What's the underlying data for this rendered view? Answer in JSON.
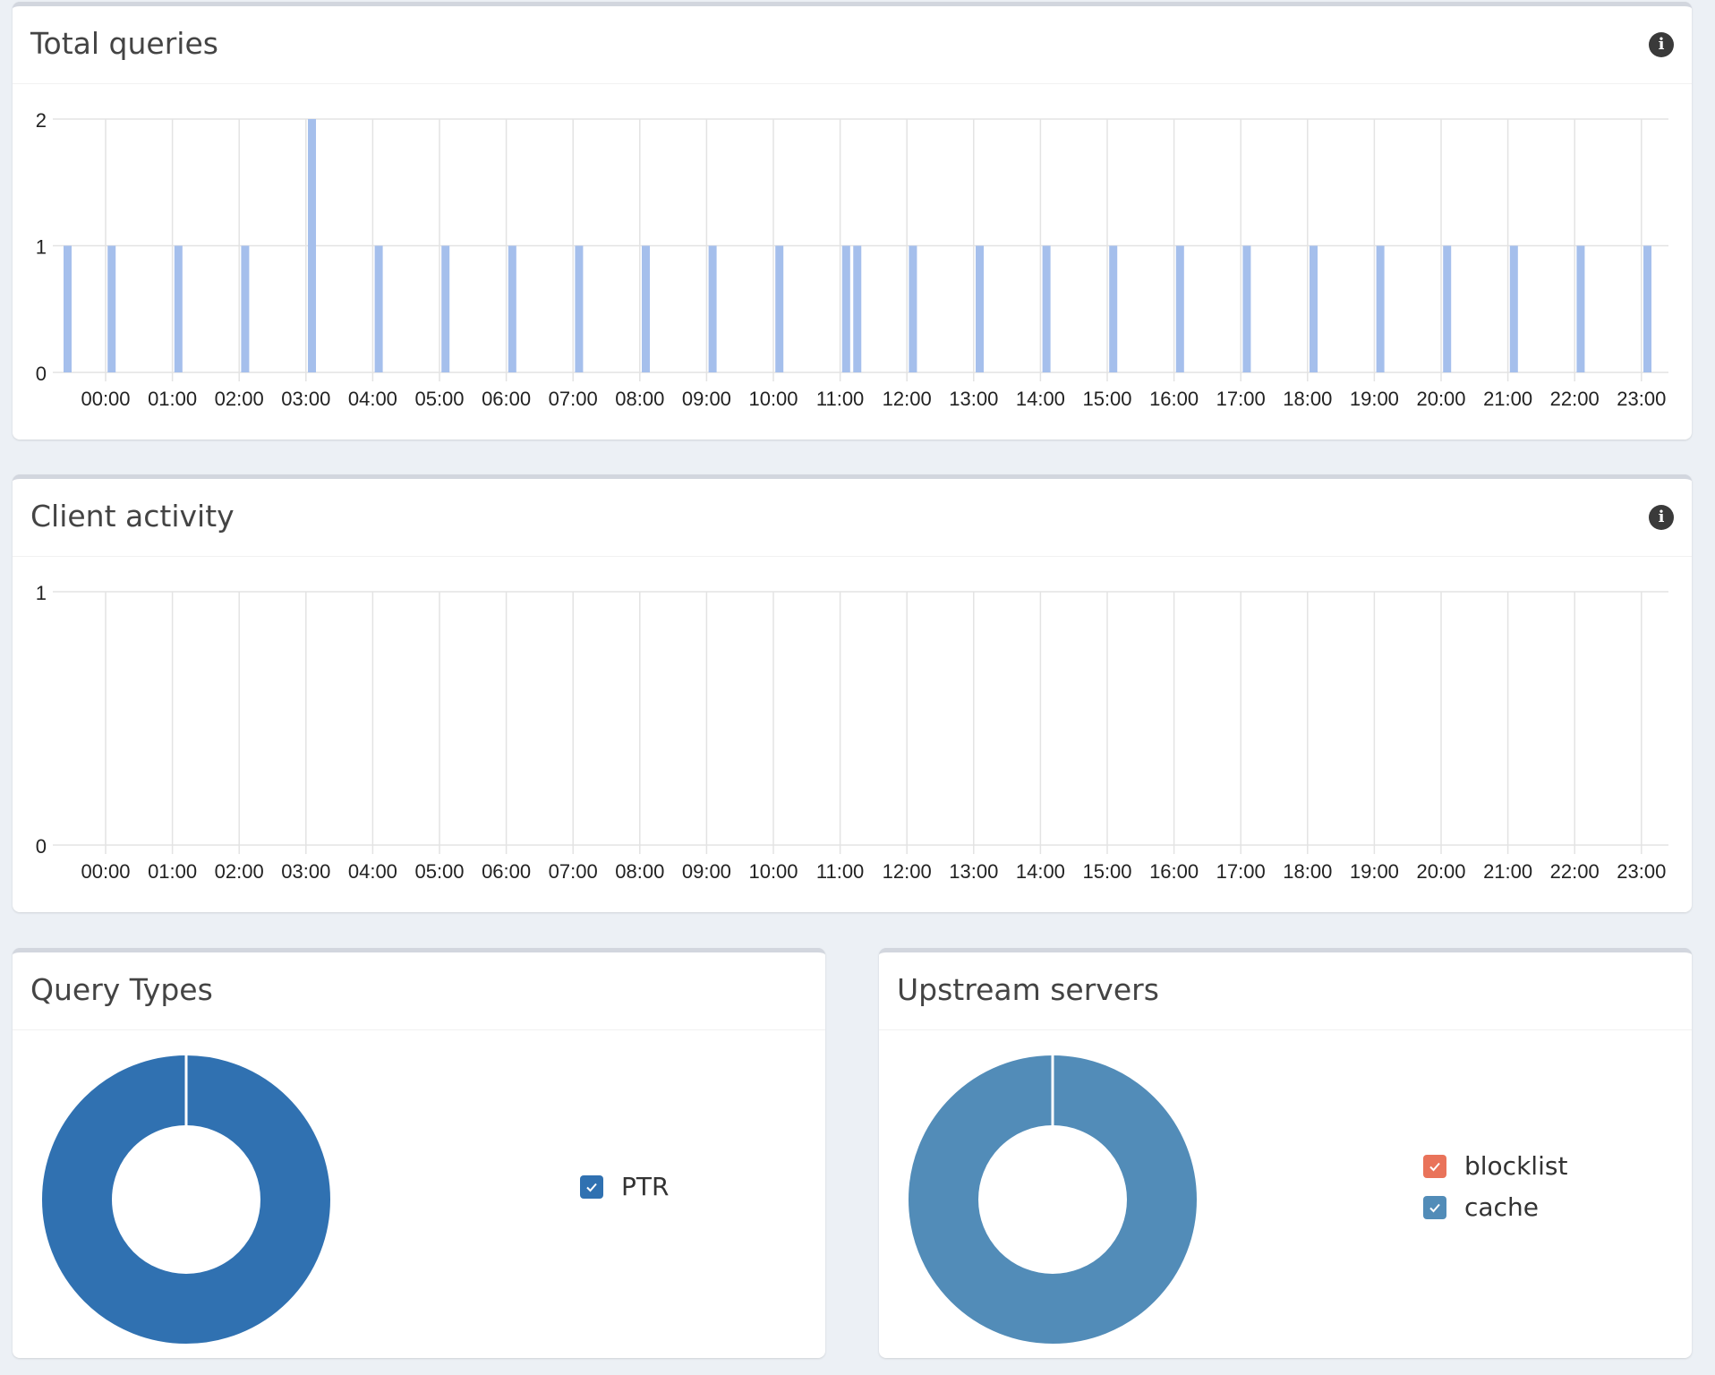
{
  "panels": {
    "total_queries": {
      "title": "Total queries"
    },
    "client_activity": {
      "title": "Client activity"
    },
    "query_types": {
      "title": "Query Types",
      "legend": [
        {
          "label": "PTR",
          "color": "#3071b1",
          "checked": true
        }
      ]
    },
    "upstream_servers": {
      "title": "Upstream servers",
      "legend": [
        {
          "label": "blocklist",
          "color": "#e9735a",
          "checked": true
        },
        {
          "label": "cache",
          "color": "#528cb8",
          "checked": true
        }
      ]
    }
  },
  "colors": {
    "bar": "#a5bfec",
    "grid": "#e3e3e3",
    "page_background": "#ecf0f5"
  },
  "icons": {
    "info": "info-icon",
    "legend_check": "check-icon"
  },
  "chart_data": [
    {
      "type": "bar",
      "title": "Total queries",
      "x_tick_labels": [
        "00:00",
        "01:00",
        "02:00",
        "03:00",
        "04:00",
        "05:00",
        "06:00",
        "07:00",
        "08:00",
        "09:00",
        "10:00",
        "11:00",
        "12:00",
        "13:00",
        "14:00",
        "15:00",
        "16:00",
        "17:00",
        "18:00",
        "19:00",
        "20:00",
        "21:00",
        "22:00",
        "23:00"
      ],
      "y_tick_labels": [
        "0",
        "1",
        "2"
      ],
      "ylim": [
        0,
        2
      ],
      "grid": true,
      "bar_times": [
        "23:30",
        "00:05",
        "01:05",
        "02:05",
        "03:05",
        "04:05",
        "05:05",
        "06:05",
        "07:05",
        "08:05",
        "09:05",
        "10:05",
        "11:05",
        "11:15",
        "12:05",
        "13:05",
        "14:05",
        "15:05",
        "16:05",
        "17:05",
        "18:05",
        "19:05",
        "20:05",
        "21:05",
        "22:05",
        "23:05"
      ],
      "bar_values": [
        1,
        1,
        1,
        1,
        2,
        1,
        1,
        1,
        1,
        1,
        1,
        1,
        1,
        1,
        1,
        1,
        1,
        1,
        1,
        1,
        1,
        1,
        1,
        1,
        1,
        1
      ]
    },
    {
      "type": "line",
      "title": "Client activity",
      "x_tick_labels": [
        "00:00",
        "01:00",
        "02:00",
        "03:00",
        "04:00",
        "05:00",
        "06:00",
        "07:00",
        "08:00",
        "09:00",
        "10:00",
        "11:00",
        "12:00",
        "13:00",
        "14:00",
        "15:00",
        "16:00",
        "17:00",
        "18:00",
        "19:00",
        "20:00",
        "21:00",
        "22:00",
        "23:00"
      ],
      "y_tick_labels": [
        "0",
        "1"
      ],
      "ylim": [
        0,
        1
      ],
      "grid": true,
      "series": []
    },
    {
      "type": "pie",
      "title": "Query Types",
      "labels": [
        "PTR"
      ],
      "values": [
        100
      ],
      "colors": [
        "#3071b1"
      ],
      "legend_position": "right"
    },
    {
      "type": "pie",
      "title": "Upstream servers",
      "labels": [
        "blocklist",
        "cache"
      ],
      "values": [
        0,
        100
      ],
      "colors": [
        "#e9735a",
        "#528cb8"
      ],
      "legend_position": "right"
    }
  ]
}
